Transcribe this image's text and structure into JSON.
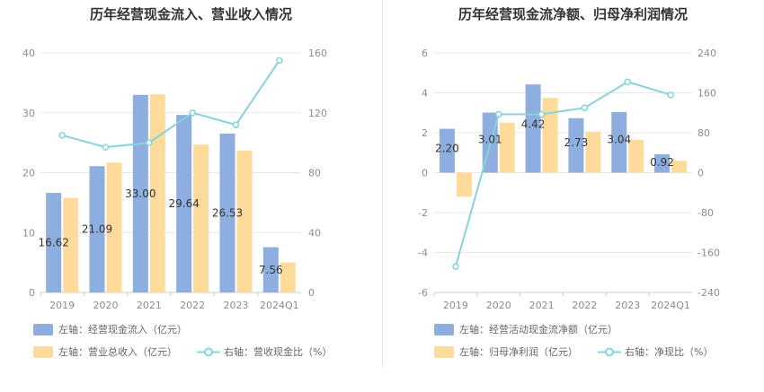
{
  "colors": {
    "bar_primary": "#8eaedf",
    "bar_secondary": "#ffdb9b",
    "line": "#87d3dc",
    "grid": "#e8e8e8",
    "axis_text": "#8c8c8c",
    "label_text": "#333333"
  },
  "chart_data": [
    {
      "type": "bar",
      "title": "历年经营现金流入、营业收入情况",
      "categories": [
        "2019",
        "2020",
        "2021",
        "2022",
        "2023",
        "2024Q1"
      ],
      "left_ylim": [
        0,
        40
      ],
      "left_ticks": [
        "0",
        "10",
        "20",
        "30",
        "40"
      ],
      "right_ylim": [
        0,
        160
      ],
      "right_ticks": [
        "0",
        "40",
        "80",
        "120",
        "160"
      ],
      "grid": true,
      "legend_position": "bottom",
      "series": [
        {
          "name": "左轴：经营现金流入（亿元）",
          "axis": "left",
          "kind": "bar",
          "values": [
            16.62,
            21.09,
            33.0,
            29.64,
            26.53,
            7.56
          ],
          "labels": [
            "16.62",
            "21.09",
            "33.00",
            "29.64",
            "26.53",
            "7.56"
          ]
        },
        {
          "name": "左轴：营业总收入（亿元）",
          "axis": "left",
          "kind": "bar",
          "values": [
            15.8,
            21.7,
            33.1,
            24.7,
            23.7,
            5.0
          ]
        },
        {
          "name": "右轴：营收现金比（%）",
          "axis": "right",
          "kind": "line",
          "values": [
            105,
            97,
            100,
            120,
            112,
            155
          ]
        }
      ]
    },
    {
      "type": "bar",
      "title": "历年经营现金流净额、归母净利润情况",
      "categories": [
        "2019",
        "2020",
        "2021",
        "2022",
        "2023",
        "2024Q1"
      ],
      "left_ylim": [
        -6,
        6
      ],
      "left_ticks": [
        "-6",
        "-4",
        "-2",
        "0",
        "2",
        "4",
        "6"
      ],
      "right_ylim": [
        -240,
        240
      ],
      "right_ticks": [
        "-240",
        "-160",
        "-80",
        "0",
        "80",
        "160",
        "240"
      ],
      "grid": true,
      "legend_position": "bottom",
      "series": [
        {
          "name": "左轴：经营活动现金流净额（亿元）",
          "axis": "left",
          "kind": "bar",
          "values": [
            2.2,
            3.01,
            4.42,
            2.73,
            3.04,
            0.92
          ],
          "labels": [
            "2.20",
            "3.01",
            "4.42",
            "2.73",
            "3.04",
            "0.92"
          ]
        },
        {
          "name": "左轴：归母净利润（亿元）",
          "axis": "left",
          "kind": "bar",
          "values": [
            -1.2,
            2.5,
            3.75,
            2.05,
            1.65,
            0.6
          ]
        },
        {
          "name": "右轴：净现比（%）",
          "axis": "right",
          "kind": "line",
          "values": [
            -188,
            117,
            117,
            130,
            182,
            156
          ]
        }
      ]
    }
  ]
}
